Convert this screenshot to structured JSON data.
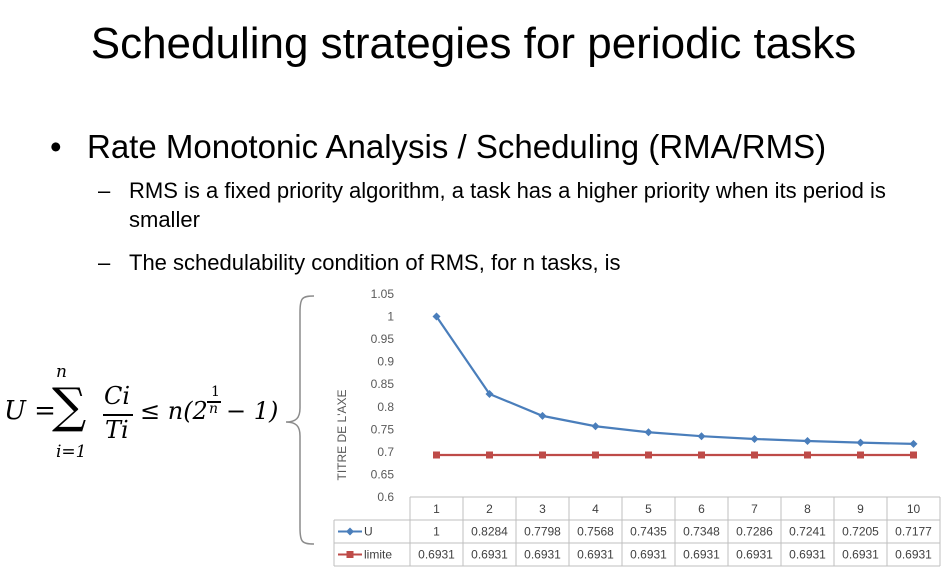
{
  "title": "Scheduling strategies for periodic tasks",
  "bullet": "Rate Monotonic Analysis / Scheduling (RMA/RMS)",
  "subbullets": [
    {
      "dash": "–",
      "text": "RMS is a fixed priority algorithm, a task has a higher priority when its period is smaller"
    },
    {
      "dash": "–",
      "text": "The schedulability condition of RMS, for n tasks, is"
    }
  ],
  "formula": {
    "lhs": "U =",
    "sum_sign": "∑",
    "upper": "n",
    "lower": "i=1",
    "frac_num": "Ci",
    "frac_den": "Ti",
    "le": "≤ n(2",
    "exp_num": "1",
    "exp_den": "n",
    "tail": "− 1)"
  },
  "chart_data": {
    "type": "line",
    "ylabel": "TITRE DE L'AXE",
    "xlabel": "",
    "ylim": [
      0.6,
      1.05
    ],
    "yticks": [
      "1.05",
      "1",
      "0.95",
      "0.9",
      "0.85",
      "0.8",
      "0.75",
      "0.7",
      "0.65",
      "0.6"
    ],
    "categories": [
      "1",
      "2",
      "3",
      "4",
      "5",
      "6",
      "7",
      "8",
      "9",
      "10"
    ],
    "series": [
      {
        "name": "U",
        "color": "#4a7ebb",
        "marker": "diamond",
        "values": [
          1,
          0.8284,
          0.7798,
          0.7568,
          0.7435,
          0.7348,
          0.7286,
          0.7241,
          0.7205,
          0.7177
        ],
        "labels": [
          "1",
          "0.8284",
          "0.7798",
          "0.7568",
          "0.7435",
          "0.7348",
          "0.7286",
          "0.7241",
          "0.7205",
          "0.7177"
        ]
      },
      {
        "name": "limite",
        "color": "#be4b48",
        "marker": "square",
        "values": [
          0.6931,
          0.6931,
          0.6931,
          0.6931,
          0.6931,
          0.6931,
          0.6931,
          0.6931,
          0.6931,
          0.6931
        ],
        "labels": [
          "0.6931",
          "0.6931",
          "0.6931",
          "0.6931",
          "0.6931",
          "0.6931",
          "0.6931",
          "0.6931",
          "0.6931",
          "0.6931"
        ]
      }
    ],
    "grid": false,
    "legend": "data-table"
  }
}
